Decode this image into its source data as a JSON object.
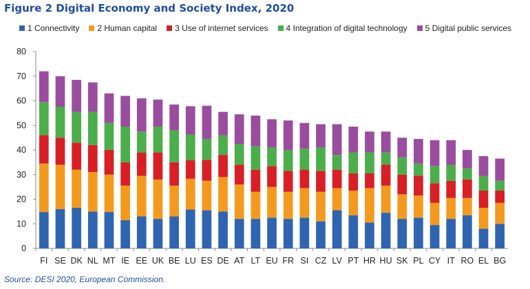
{
  "figure_title": "Figure 2 Digital Economy and Society Index, 2020",
  "source": "Source: DESI 2020, European Commission.",
  "chart_data": {
    "type": "bar",
    "stacked": true,
    "categories": [
      "FI",
      "SE",
      "DK",
      "NL",
      "MT",
      "IE",
      "EE",
      "UK",
      "BE",
      "LU",
      "ES",
      "DE",
      "AT",
      "LT",
      "EU",
      "FR",
      "SI",
      "CZ",
      "LV",
      "PT",
      "HR",
      "HU",
      "SK",
      "PL",
      "CY",
      "IT",
      "RO",
      "EL",
      "BG"
    ],
    "ylim": [
      0,
      80
    ],
    "yticks": [
      0,
      10,
      20,
      30,
      40,
      50,
      60,
      70,
      80
    ],
    "ytick_labels": [
      "0",
      "10",
      "20",
      "30",
      "40",
      "50",
      "60",
      "70",
      "80"
    ],
    "legend_position": "top",
    "grid": false,
    "series": [
      {
        "name": "1 Connectivity",
        "color": "#2f65b0",
        "values": [
          14.8,
          16.0,
          16.5,
          15.0,
          14.8,
          11.5,
          13.0,
          12.0,
          13.0,
          15.8,
          15.5,
          15.0,
          12.0,
          12.0,
          12.5,
          12.0,
          12.5,
          11.0,
          15.5,
          13.5,
          10.5,
          14.5,
          12.0,
          12.5,
          9.5,
          12.0,
          13.5,
          8.0,
          10.0
        ]
      },
      {
        "name": "2 Human capital",
        "color": "#f39a1e",
        "values": [
          19.7,
          18.0,
          15.5,
          16.0,
          15.2,
          14.0,
          16.5,
          16.0,
          12.5,
          12.5,
          12.0,
          14.0,
          14.0,
          11.0,
          12.5,
          11.0,
          12.0,
          12.0,
          9.0,
          10.0,
          14.0,
          11.0,
          10.0,
          9.0,
          9.0,
          8.5,
          7.0,
          8.5,
          8.5
        ]
      },
      {
        "name": "3 Use of internet services",
        "color": "#d91f26",
        "values": [
          11.5,
          11.0,
          11.0,
          11.0,
          10.0,
          9.5,
          9.5,
          11.0,
          9.5,
          7.5,
          8.5,
          9.0,
          8.0,
          9.0,
          8.5,
          8.5,
          7.5,
          8.5,
          7.5,
          7.0,
          6.0,
          8.5,
          8.0,
          8.0,
          8.0,
          7.0,
          7.5,
          7.0,
          5.0
        ]
      },
      {
        "name": "4 Integration of digital technology",
        "color": "#4bae4a",
        "values": [
          13.5,
          12.5,
          12.5,
          13.5,
          11.0,
          14.5,
          8.5,
          10.5,
          13.0,
          10.5,
          8.5,
          8.0,
          8.5,
          9.5,
          7.5,
          8.5,
          8.5,
          9.5,
          6.0,
          8.5,
          8.5,
          5.0,
          7.0,
          5.0,
          7.0,
          6.5,
          4.5,
          6.0,
          4.0
        ]
      },
      {
        "name": "5 Digital public services",
        "color": "#9a4d9e",
        "values": [
          12.5,
          12.5,
          13.0,
          12.0,
          12.0,
          12.5,
          13.5,
          11.0,
          10.5,
          11.5,
          13.5,
          9.5,
          12.0,
          12.5,
          11.5,
          12.0,
          10.5,
          9.5,
          12.5,
          10.5,
          8.5,
          8.5,
          8.0,
          10.0,
          10.5,
          10.0,
          7.5,
          8.0,
          9.0
        ]
      }
    ]
  }
}
